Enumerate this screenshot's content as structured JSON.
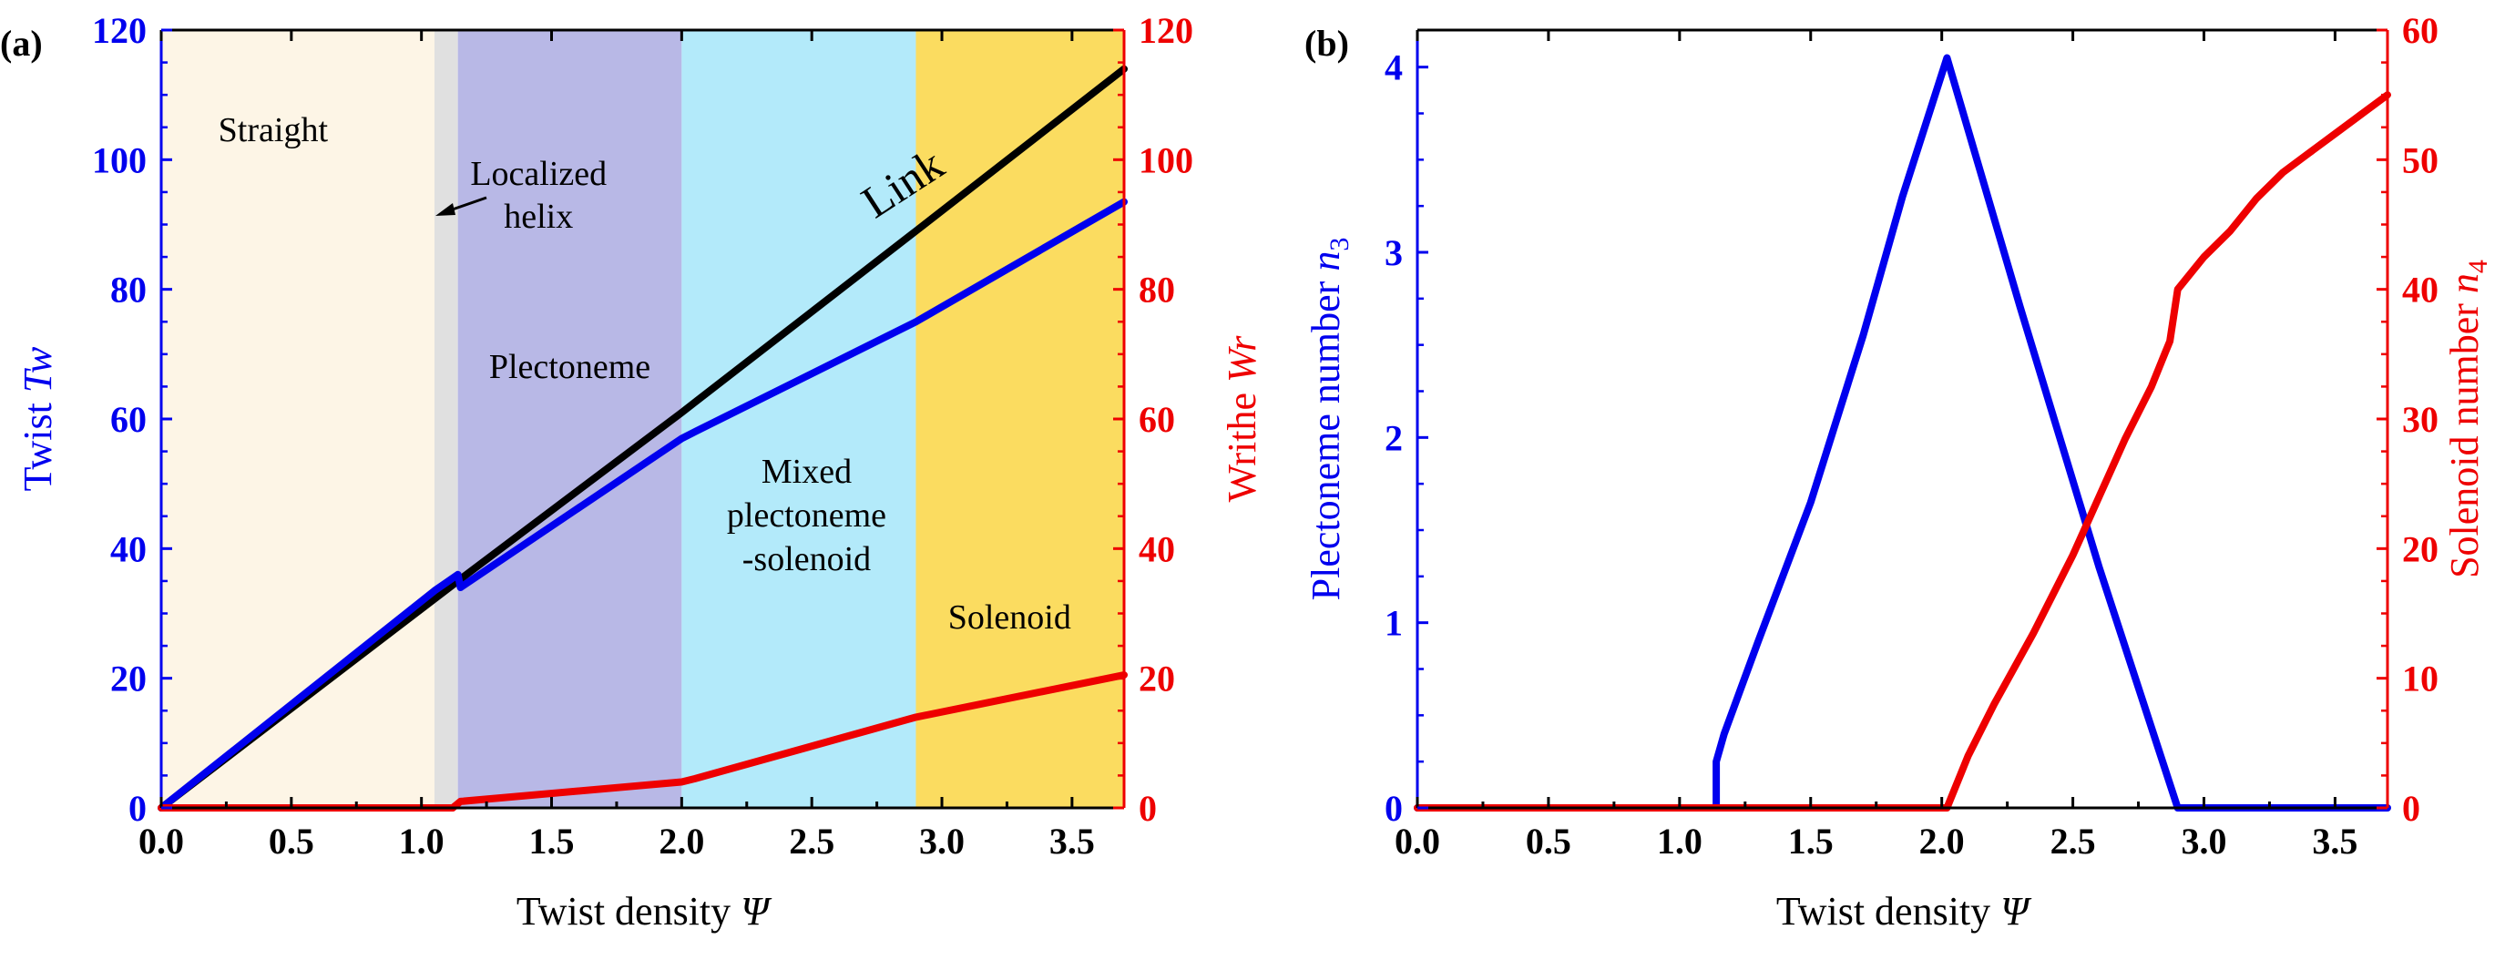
{
  "chart_data": [
    {
      "panel_label": "(a)",
      "type": "line",
      "xlabel": "Twist density",
      "xlabel_symbol": "Ψ",
      "ylabel_left": "Twist",
      "ylabel_left_symbol": "Tw",
      "ylabel_right": "Writhe",
      "ylabel_right_symbol": "Wr",
      "xlim": [
        0,
        3.7
      ],
      "ylim_left": [
        0,
        120
      ],
      "ylim_right": [
        0,
        120
      ],
      "xticks": [
        "0.0",
        "0.5",
        "1.0",
        "1.5",
        "2.0",
        "2.5",
        "3.0",
        "3.5"
      ],
      "yticks_left": [
        "0",
        "20",
        "40",
        "60",
        "80",
        "100",
        "120"
      ],
      "yticks_right": [
        "0",
        "20",
        "40",
        "60",
        "80",
        "100",
        "120"
      ],
      "colors": {
        "left_axis": "#0000ee",
        "right_axis": "#ee0000"
      },
      "regions": [
        {
          "label": "Straight",
          "x0": 0.0,
          "x1": 1.05,
          "color": "#fdf5e6"
        },
        {
          "label": "Localized helix",
          "x0": 1.05,
          "x1": 1.14,
          "color": "#e0e0e0"
        },
        {
          "label": "Plectoneme",
          "x0": 1.14,
          "x1": 2.0,
          "color": "#b8b8e6"
        },
        {
          "label": "Mixed plectoneme -solenoid",
          "x0": 2.0,
          "x1": 2.9,
          "color": "#b3eafa"
        },
        {
          "label": "Solenoid",
          "x0": 2.9,
          "x1": 3.7,
          "color": "#fbdc60"
        }
      ],
      "region_label_lines": {
        "straight": [
          "Straight"
        ],
        "localized": [
          "Localized",
          "helix"
        ],
        "plectoneme": [
          "Plectoneme"
        ],
        "mixed": [
          "Mixed",
          "plectoneme",
          "-solenoid"
        ],
        "solenoid": [
          "Solenoid"
        ]
      },
      "annotation": "Link",
      "series": [
        {
          "name": "Link",
          "axis": "left",
          "color": "#000000",
          "x": [
            0,
            1.14,
            2.0,
            2.9,
            3.7
          ],
          "y": [
            0,
            35,
            61,
            89,
            114
          ]
        },
        {
          "name": "Twist",
          "axis": "left",
          "color": "#0000ee",
          "x": [
            0,
            1.05,
            1.14,
            1.15,
            2.0,
            2.05,
            2.9,
            3.7
          ],
          "y": [
            0,
            33.5,
            36,
            34,
            57,
            58,
            75,
            93.5
          ]
        },
        {
          "name": "Writhe",
          "axis": "right",
          "color": "#ee0000",
          "x": [
            0,
            1.12,
            1.15,
            2.0,
            2.05,
            2.9,
            3.7
          ],
          "y": [
            0,
            0,
            1,
            4,
            4.5,
            14,
            20.5
          ]
        }
      ]
    },
    {
      "panel_label": "(b)",
      "type": "line",
      "xlabel": "Twist density",
      "xlabel_symbol": "Ψ",
      "ylabel_left": "Plectoneme number",
      "ylabel_left_symbol": "n",
      "ylabel_left_sub": "3",
      "ylabel_right": "Solenoid number",
      "ylabel_right_symbol": "n",
      "ylabel_right_sub": "4",
      "xlim": [
        0,
        3.7
      ],
      "ylim_left": [
        0,
        4.2
      ],
      "ylim_right": [
        0,
        60
      ],
      "xticks": [
        "0.0",
        "0.5",
        "1.0",
        "1.5",
        "2.0",
        "2.5",
        "3.0",
        "3.5"
      ],
      "yticks_left": [
        "0",
        "1",
        "2",
        "3",
        "4"
      ],
      "yticks_right": [
        "0",
        "10",
        "20",
        "30",
        "40",
        "50",
        "60"
      ],
      "colors": {
        "left_axis": "#0000ee",
        "right_axis": "#ee0000"
      },
      "series": [
        {
          "name": "Plectoneme number",
          "axis": "left",
          "color": "#0000ee",
          "x": [
            0,
            1.14,
            1.14,
            1.17,
            1.3,
            1.5,
            1.7,
            1.85,
            2.02,
            2.3,
            2.6,
            2.9,
            2.9,
            3.7
          ],
          "y": [
            0,
            0,
            0.25,
            0.4,
            0.9,
            1.65,
            2.55,
            3.3,
            4.05,
            2.7,
            1.3,
            0.0,
            0,
            0
          ]
        },
        {
          "name": "Solenoid number",
          "axis": "right",
          "color": "#ee0000",
          "x": [
            0,
            2.0,
            2.02,
            2.1,
            2.2,
            2.35,
            2.5,
            2.6,
            2.7,
            2.8,
            2.85,
            2.87,
            2.9,
            3.0,
            3.1,
            3.2,
            3.3,
            3.4,
            3.5,
            3.6,
            3.7
          ],
          "y": [
            0,
            0,
            0,
            4,
            8,
            13.5,
            19.5,
            24,
            28.5,
            32.5,
            35,
            36,
            40,
            42.5,
            44.5,
            47,
            49,
            50.5,
            52,
            53.5,
            55
          ]
        }
      ]
    }
  ]
}
